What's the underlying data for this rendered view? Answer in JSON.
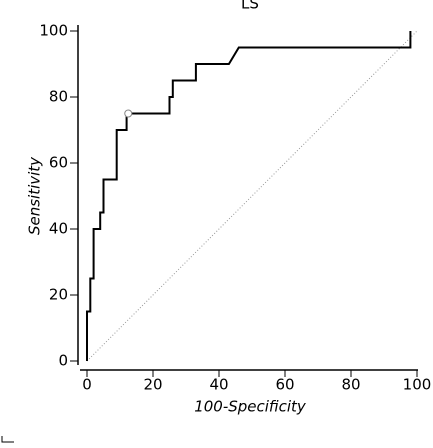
{
  "chart_data": {
    "type": "line",
    "title": "LS",
    "x_label": "100-Specificity",
    "y_label": "Sensitivity",
    "x": [
      0,
      0,
      1,
      1,
      2,
      2,
      4,
      4,
      5,
      5,
      9,
      9,
      12,
      12,
      25,
      25,
      26,
      26,
      33,
      33,
      43,
      46,
      98,
      98
    ],
    "series": [
      {
        "color": "#000000",
        "values": [
          0,
          15,
          15,
          25,
          25,
          40,
          40,
          45,
          45,
          55,
          55,
          70,
          70,
          75,
          75,
          80,
          80,
          85,
          85,
          90,
          90,
          95,
          95,
          100
        ]
      }
    ],
    "highlight_point": {
      "x": 12.5,
      "y": 75
    },
    "reference_line": {
      "x": [
        0,
        100
      ],
      "y": [
        0,
        100
      ],
      "color": "#999999"
    },
    "xlim": [
      0,
      100
    ],
    "ylim": [
      0,
      100
    ],
    "xticks": [
      0,
      20,
      40,
      60,
      80,
      100
    ],
    "yticks": [
      0,
      20,
      40,
      60,
      80,
      100
    ]
  }
}
